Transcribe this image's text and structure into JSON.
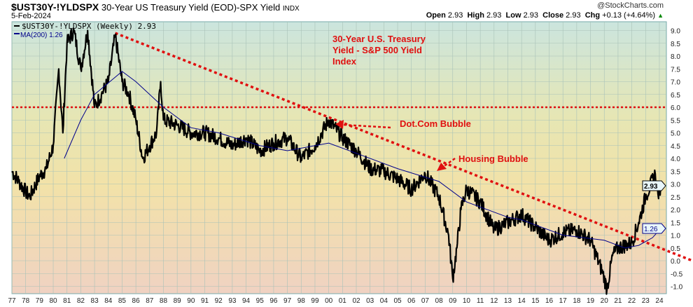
{
  "header": {
    "symbol": "$UST30Y-!YLDSPX",
    "description": "30-Year US Treasury Yield (EOD)-SPX Yield",
    "exchange": "INDX",
    "date": "5-Feb-2024",
    "credit": "@StockCharts.com",
    "ohlc": {
      "open_label": "Open",
      "open": "2.93",
      "high_label": "High",
      "high": "2.93",
      "low_label": "Low",
      "low": "2.93",
      "close_label": "Close",
      "close": "2.93",
      "chg_label": "Chg",
      "chg": "+0.13 (+4.64%)"
    }
  },
  "chart_data": {
    "type": "line",
    "title": "30-Year U.S. Treasury Yield - S&P 500 Yield Index",
    "legend": [
      {
        "name": "$UST30Y-!YLDSPX (Weekly) 2.93",
        "color": "#000000"
      },
      {
        "name": "MA(200) 1.26",
        "color": "#00008b"
      }
    ],
    "legend_position": "top-left",
    "grid": true,
    "ylim": [
      -1.5,
      9.5
    ],
    "xlim": [
      1977,
      2024.6
    ],
    "yticks": [
      "9.0",
      "8.5",
      "8.0",
      "7.5",
      "7.0",
      "6.5",
      "6.0",
      "5.5",
      "5.0",
      "4.5",
      "4.0",
      "3.5",
      "3.0",
      "2.5",
      "2.0",
      "1.5",
      "1.0",
      "0.5",
      "0.0",
      "-0.5",
      "-1.0"
    ],
    "xticks": [
      "77",
      "78",
      "79",
      "80",
      "81",
      "82",
      "83",
      "84",
      "85",
      "86",
      "87",
      "88",
      "89",
      "90",
      "91",
      "92",
      "93",
      "94",
      "95",
      "96",
      "97",
      "98",
      "99",
      "00",
      "01",
      "02",
      "03",
      "04",
      "05",
      "06",
      "07",
      "08",
      "09",
      "10",
      "11",
      "12",
      "13",
      "14",
      "15",
      "16",
      "17",
      "18",
      "19",
      "20",
      "21",
      "22",
      "23",
      "24"
    ],
    "series": [
      {
        "name": "$UST30Y-!YLDSPX",
        "x": [
          1977,
          1977.5,
          1978,
          1978.3,
          1979,
          1979.5,
          1980,
          1980.4,
          1980.7,
          1981,
          1981.5,
          1982,
          1982.5,
          1983,
          1983.5,
          1984,
          1984.5,
          1985,
          1985.5,
          1986,
          1986.5,
          1987,
          1987.5,
          1987.8,
          1988,
          1989,
          1990,
          1991,
          1992,
          1993,
          1994,
          1995,
          1996,
          1997,
          1998,
          1999,
          2000,
          2001,
          2002,
          2003,
          2004,
          2005,
          2006,
          2007,
          2008,
          2008.7,
          2009,
          2009.3,
          2009.6,
          2010,
          2011,
          2012,
          2013,
          2014,
          2015,
          2016,
          2017,
          2018,
          2019,
          2019.9,
          2020.2,
          2020.6,
          2021,
          2022,
          2022.5,
          2023,
          2023.7,
          2023.9,
          2024.1
        ],
        "y": [
          3.5,
          3.1,
          2.7,
          2.5,
          3.3,
          3.6,
          4.5,
          7.5,
          5.0,
          8.5,
          9.0,
          7.5,
          9.0,
          6.0,
          6.5,
          7.0,
          8.8,
          7.0,
          6.5,
          5.5,
          4.0,
          4.5,
          5.0,
          7.0,
          5.5,
          5.3,
          5.0,
          5.0,
          4.8,
          4.5,
          4.8,
          4.3,
          4.6,
          4.8,
          4.0,
          4.5,
          5.5,
          4.8,
          4.3,
          3.6,
          3.5,
          3.2,
          2.8,
          3.4,
          2.5,
          1.0,
          -0.7,
          0.5,
          2.0,
          2.8,
          2.3,
          1.2,
          1.5,
          1.8,
          1.3,
          0.8,
          1.1,
          1.2,
          0.8,
          -0.5,
          -1.1,
          0.2,
          0.5,
          0.7,
          1.5,
          2.5,
          3.4,
          2.6,
          2.93
        ]
      },
      {
        "name": "MA(200)",
        "x": [
          1980.8,
          1982,
          1983,
          1985,
          1986,
          1988,
          1990,
          1992,
          1995,
          1997,
          2000,
          2002,
          2005,
          2008,
          2010,
          2013,
          2014,
          2017,
          2020,
          2021.5,
          2022.5,
          2023.5,
          2024.1
        ],
        "y": [
          4.0,
          5.5,
          6.5,
          7.4,
          7.0,
          6.0,
          5.2,
          5.0,
          4.5,
          4.3,
          4.6,
          4.2,
          3.6,
          3.1,
          2.3,
          1.7,
          1.6,
          1.0,
          0.8,
          0.5,
          0.6,
          0.9,
          1.26
        ]
      }
    ],
    "reference_lines": {
      "horizontal": 6.0,
      "trendline": {
        "from": [
          1984.5,
          8.9
        ],
        "to": [
          2026.4,
          0.0
        ]
      }
    },
    "annotations": [
      "30-Year U.S. Treasury",
      "Yield - S&P 500 Yield",
      "Index",
      "Dot.Com Bubble",
      "Housing Bubble"
    ],
    "last_value_tags": [
      "2.93",
      "1.26"
    ]
  }
}
